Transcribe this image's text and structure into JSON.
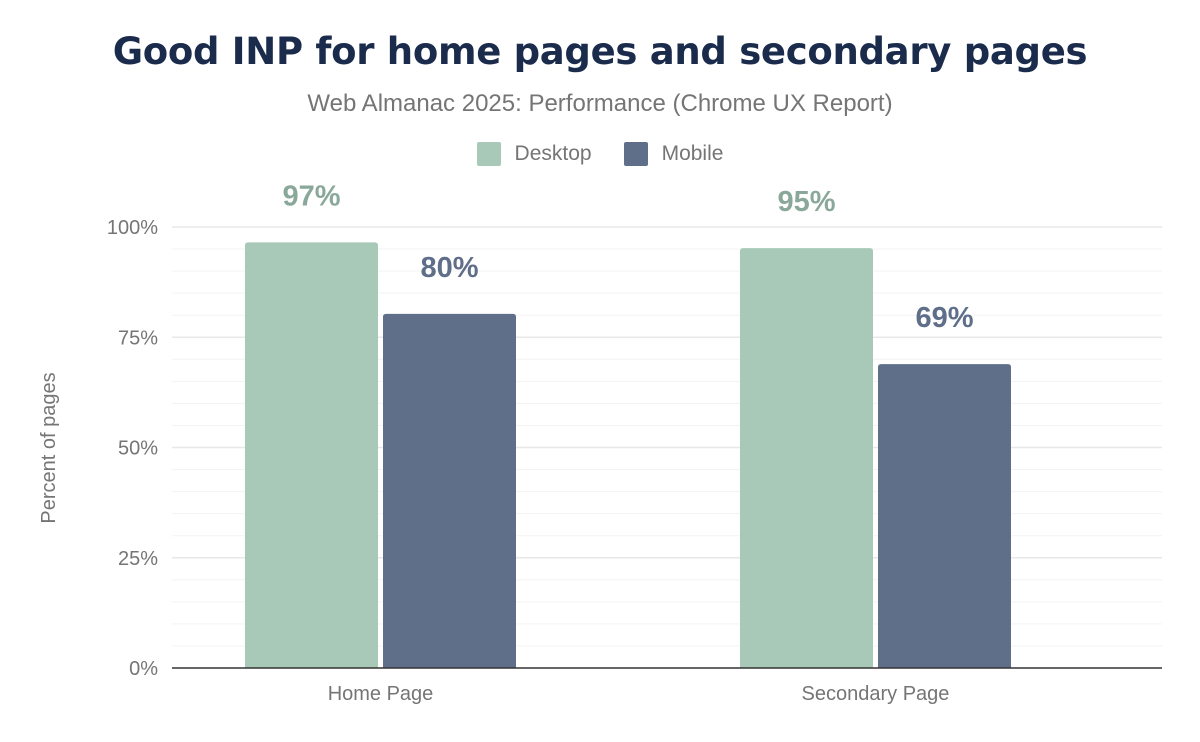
{
  "chart_data": {
    "type": "bar",
    "title": "Good INP for home pages and secondary pages",
    "subtitle": "Web Almanac 2025: Performance (Chrome UX Report)",
    "xlabel": "",
    "ylabel": "Percent of pages",
    "ylim": [
      0,
      100
    ],
    "yticks": [
      "0%",
      "25%",
      "50%",
      "75%",
      "100%"
    ],
    "grid": true,
    "legend_position": "top",
    "categories": [
      "Home Page",
      "Secondary Page"
    ],
    "series": [
      {
        "name": "Desktop",
        "color": "#a8c9b8",
        "label_color": "#8aa89a",
        "values": [
          96.5,
          95.2
        ],
        "labels": [
          "97%",
          "95%"
        ]
      },
      {
        "name": "Mobile",
        "color": "#5f6f8a",
        "label_color": "#5f6e89",
        "values": [
          80.3,
          68.9
        ],
        "labels": [
          "80%",
          "69%"
        ]
      }
    ]
  }
}
